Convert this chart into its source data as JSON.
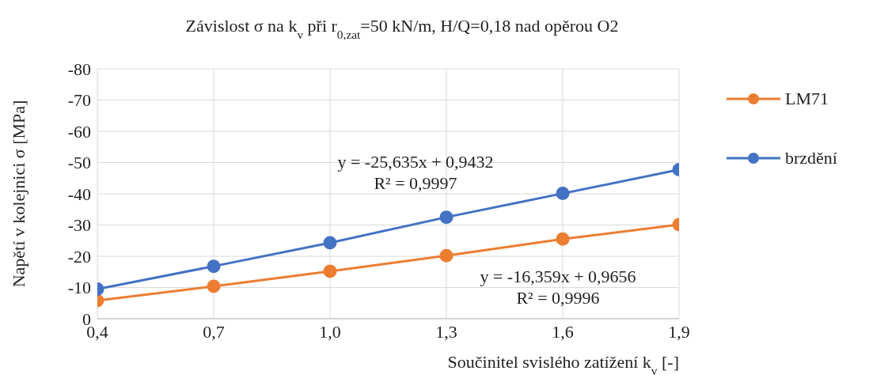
{
  "chart_data": {
    "type": "line",
    "title": "Závislost σ na k$_{v}$ při r$_{0,zat}$=50 kN/m, H/Q=0,18 nad opěrou O2",
    "xlabel": "Součinitel svislého zatížení k$_{v}$ [-]",
    "ylabel": "Napětí v kolejnici σ [MPa]",
    "x": [
      0.4,
      0.7,
      1.0,
      1.3,
      1.6,
      1.9
    ],
    "series": [
      {
        "name": "LM71",
        "color": "#ed7d31",
        "values": [
          -5.8,
          -10.4,
          -15.2,
          -20.2,
          -25.5,
          -30.1
        ]
      },
      {
        "name": "brzdění",
        "color": "#4472c4",
        "values": [
          -9.5,
          -16.8,
          -24.3,
          -32.5,
          -40.1,
          -47.7
        ]
      }
    ],
    "marker": "circle",
    "line_style": "solid",
    "xlim": [
      0.4,
      1.9
    ],
    "xticks": [
      {
        "value": 0.4,
        "label": "0,4"
      },
      {
        "value": 0.7,
        "label": "0,7"
      },
      {
        "value": 1.0,
        "label": "1,0"
      },
      {
        "value": 1.3,
        "label": "1,3"
      },
      {
        "value": 1.6,
        "label": "1,6"
      },
      {
        "value": 1.9,
        "label": "1,9"
      }
    ],
    "ylim": [
      0,
      -80
    ],
    "yticks": [
      0,
      -10,
      -20,
      -30,
      -40,
      -50,
      -60,
      -70,
      -80
    ],
    "grid": true,
    "legend": "top right",
    "annotations": [
      "y = -25,635x + 0,9432",
      "R² = 0,9997",
      "y = -16,359x + 0,9656",
      "R² = 0,9996"
    ]
  }
}
